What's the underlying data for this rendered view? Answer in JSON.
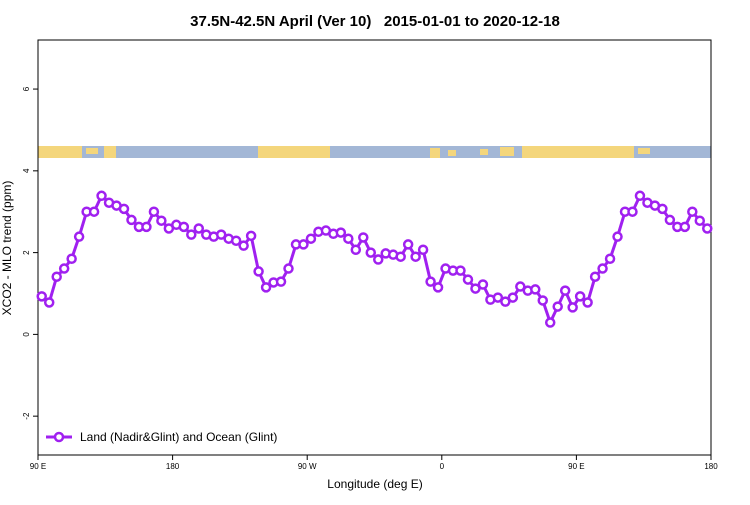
{
  "chart_data": {
    "type": "line",
    "title": "37.5N-42.5N April (Ver 10)   2015-01-01 to 2020-12-18",
    "x_label": "Longitude (deg E)",
    "y_label": "XCO2 - MLO trend (ppm)",
    "xlim": [
      90,
      540
    ],
    "ylim": [
      -2.95,
      7.2
    ],
    "xticks": [
      {
        "value": 90,
        "label": "90 E"
      },
      180,
      {
        "value": 270,
        "label": "90 W"
      },
      {
        "value": 360,
        "label": "0"
      },
      {
        "value": 450,
        "label": "90 E"
      },
      {
        "value": 540,
        "label": "180"
      }
    ],
    "yticks": [
      -2,
      0,
      2,
      4,
      6
    ],
    "legend": "bottom-left",
    "x": [
      92.5,
      97.5,
      102.5,
      107.5,
      112.5,
      117.5,
      122.5,
      127.5,
      132.5,
      137.5,
      142.5,
      147.5,
      152.5,
      157.5,
      162.5,
      167.5,
      172.5,
      177.5,
      182.5,
      187.5,
      192.5,
      197.5,
      202.5,
      207.5,
      212.5,
      217.5,
      222.5,
      227.5,
      232.5,
      237.5,
      242.5,
      247.5,
      252.5,
      257.5,
      262.5,
      267.5,
      272.5,
      277.5,
      282.5,
      287.5,
      292.5,
      297.5,
      302.5,
      307.5,
      312.5,
      317.5,
      322.5,
      327.5,
      332.5,
      337.5,
      342.5,
      347.5,
      352.5,
      357.5,
      362.5,
      367.5,
      372.5,
      377.5,
      382.5,
      387.5,
      392.5,
      397.5,
      402.5,
      407.5,
      412.5,
      417.5,
      422.5,
      427.5,
      432.5,
      437.5,
      442.5,
      447.5,
      452.5,
      457.5,
      462.5,
      467.5,
      472.5,
      477.5,
      482.5,
      487.5,
      492.5,
      497.5,
      502.5,
      507.5,
      512.5,
      517.5,
      522.5,
      527.5,
      532.5,
      537.5
    ],
    "series": [
      {
        "name": "Land (Nadir&Glint) and Ocean (Glint)",
        "color": "#a020f0",
        "values": [
          0.93,
          0.78,
          1.41,
          1.61,
          1.85,
          2.39,
          3.0,
          3.0,
          3.39,
          3.22,
          3.15,
          3.07,
          2.8,
          2.63,
          2.63,
          3.0,
          2.78,
          2.59,
          2.68,
          2.63,
          2.44,
          2.59,
          2.44,
          2.39,
          2.44,
          2.34,
          2.29,
          2.17,
          2.41,
          1.54,
          1.15,
          1.27,
          1.29,
          1.61,
          2.2,
          2.2,
          2.34,
          2.51,
          2.54,
          2.46,
          2.49,
          2.34,
          2.07,
          2.37,
          2.0,
          1.83,
          1.98,
          1.95,
          1.9,
          2.2,
          1.9,
          2.07,
          1.29,
          1.15,
          1.61,
          1.56,
          1.56,
          1.34,
          1.12,
          1.22,
          0.85,
          0.9,
          0.8,
          0.9,
          1.17,
          1.07,
          1.1,
          0.83,
          0.29,
          0.68,
          1.07,
          0.66,
          0.93,
          0.78,
          1.41,
          1.61,
          1.85,
          2.39,
          3.0,
          3.0,
          3.39,
          3.22,
          3.15,
          3.07,
          2.8,
          2.63,
          2.63,
          3.0,
          2.78,
          2.59
        ]
      }
    ]
  }
}
